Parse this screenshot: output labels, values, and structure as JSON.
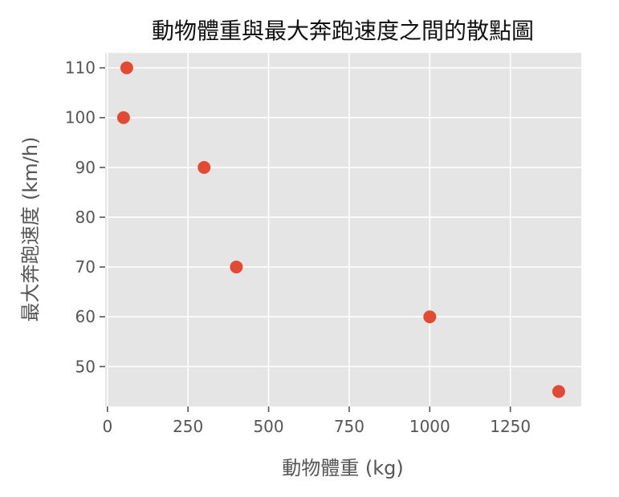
{
  "chart_data": {
    "type": "scatter",
    "title": "動物體重與最大奔跑速度之間的散點圖",
    "xlabel": "動物體重 (kg)",
    "ylabel": "最大奔跑速度 (km/h)",
    "xlim": [
      -7,
      1470
    ],
    "ylim": [
      42,
      113
    ],
    "xticks": [
      0,
      250,
      500,
      750,
      1000,
      1250
    ],
    "yticks": [
      50,
      60,
      70,
      80,
      90,
      100,
      110
    ],
    "grid": true,
    "legend": "none",
    "style": "ggplot",
    "colors": {
      "marker": "#E24A33",
      "plot_background": "#E5E5E5",
      "grid": "#FFFFFF",
      "text": "#555555",
      "title": "#111111"
    },
    "points": [
      {
        "x": 60,
        "y": 110
      },
      {
        "x": 50,
        "y": 100
      },
      {
        "x": 300,
        "y": 90
      },
      {
        "x": 400,
        "y": 70
      },
      {
        "x": 1000,
        "y": 60
      },
      {
        "x": 1400,
        "y": 45
      }
    ]
  }
}
